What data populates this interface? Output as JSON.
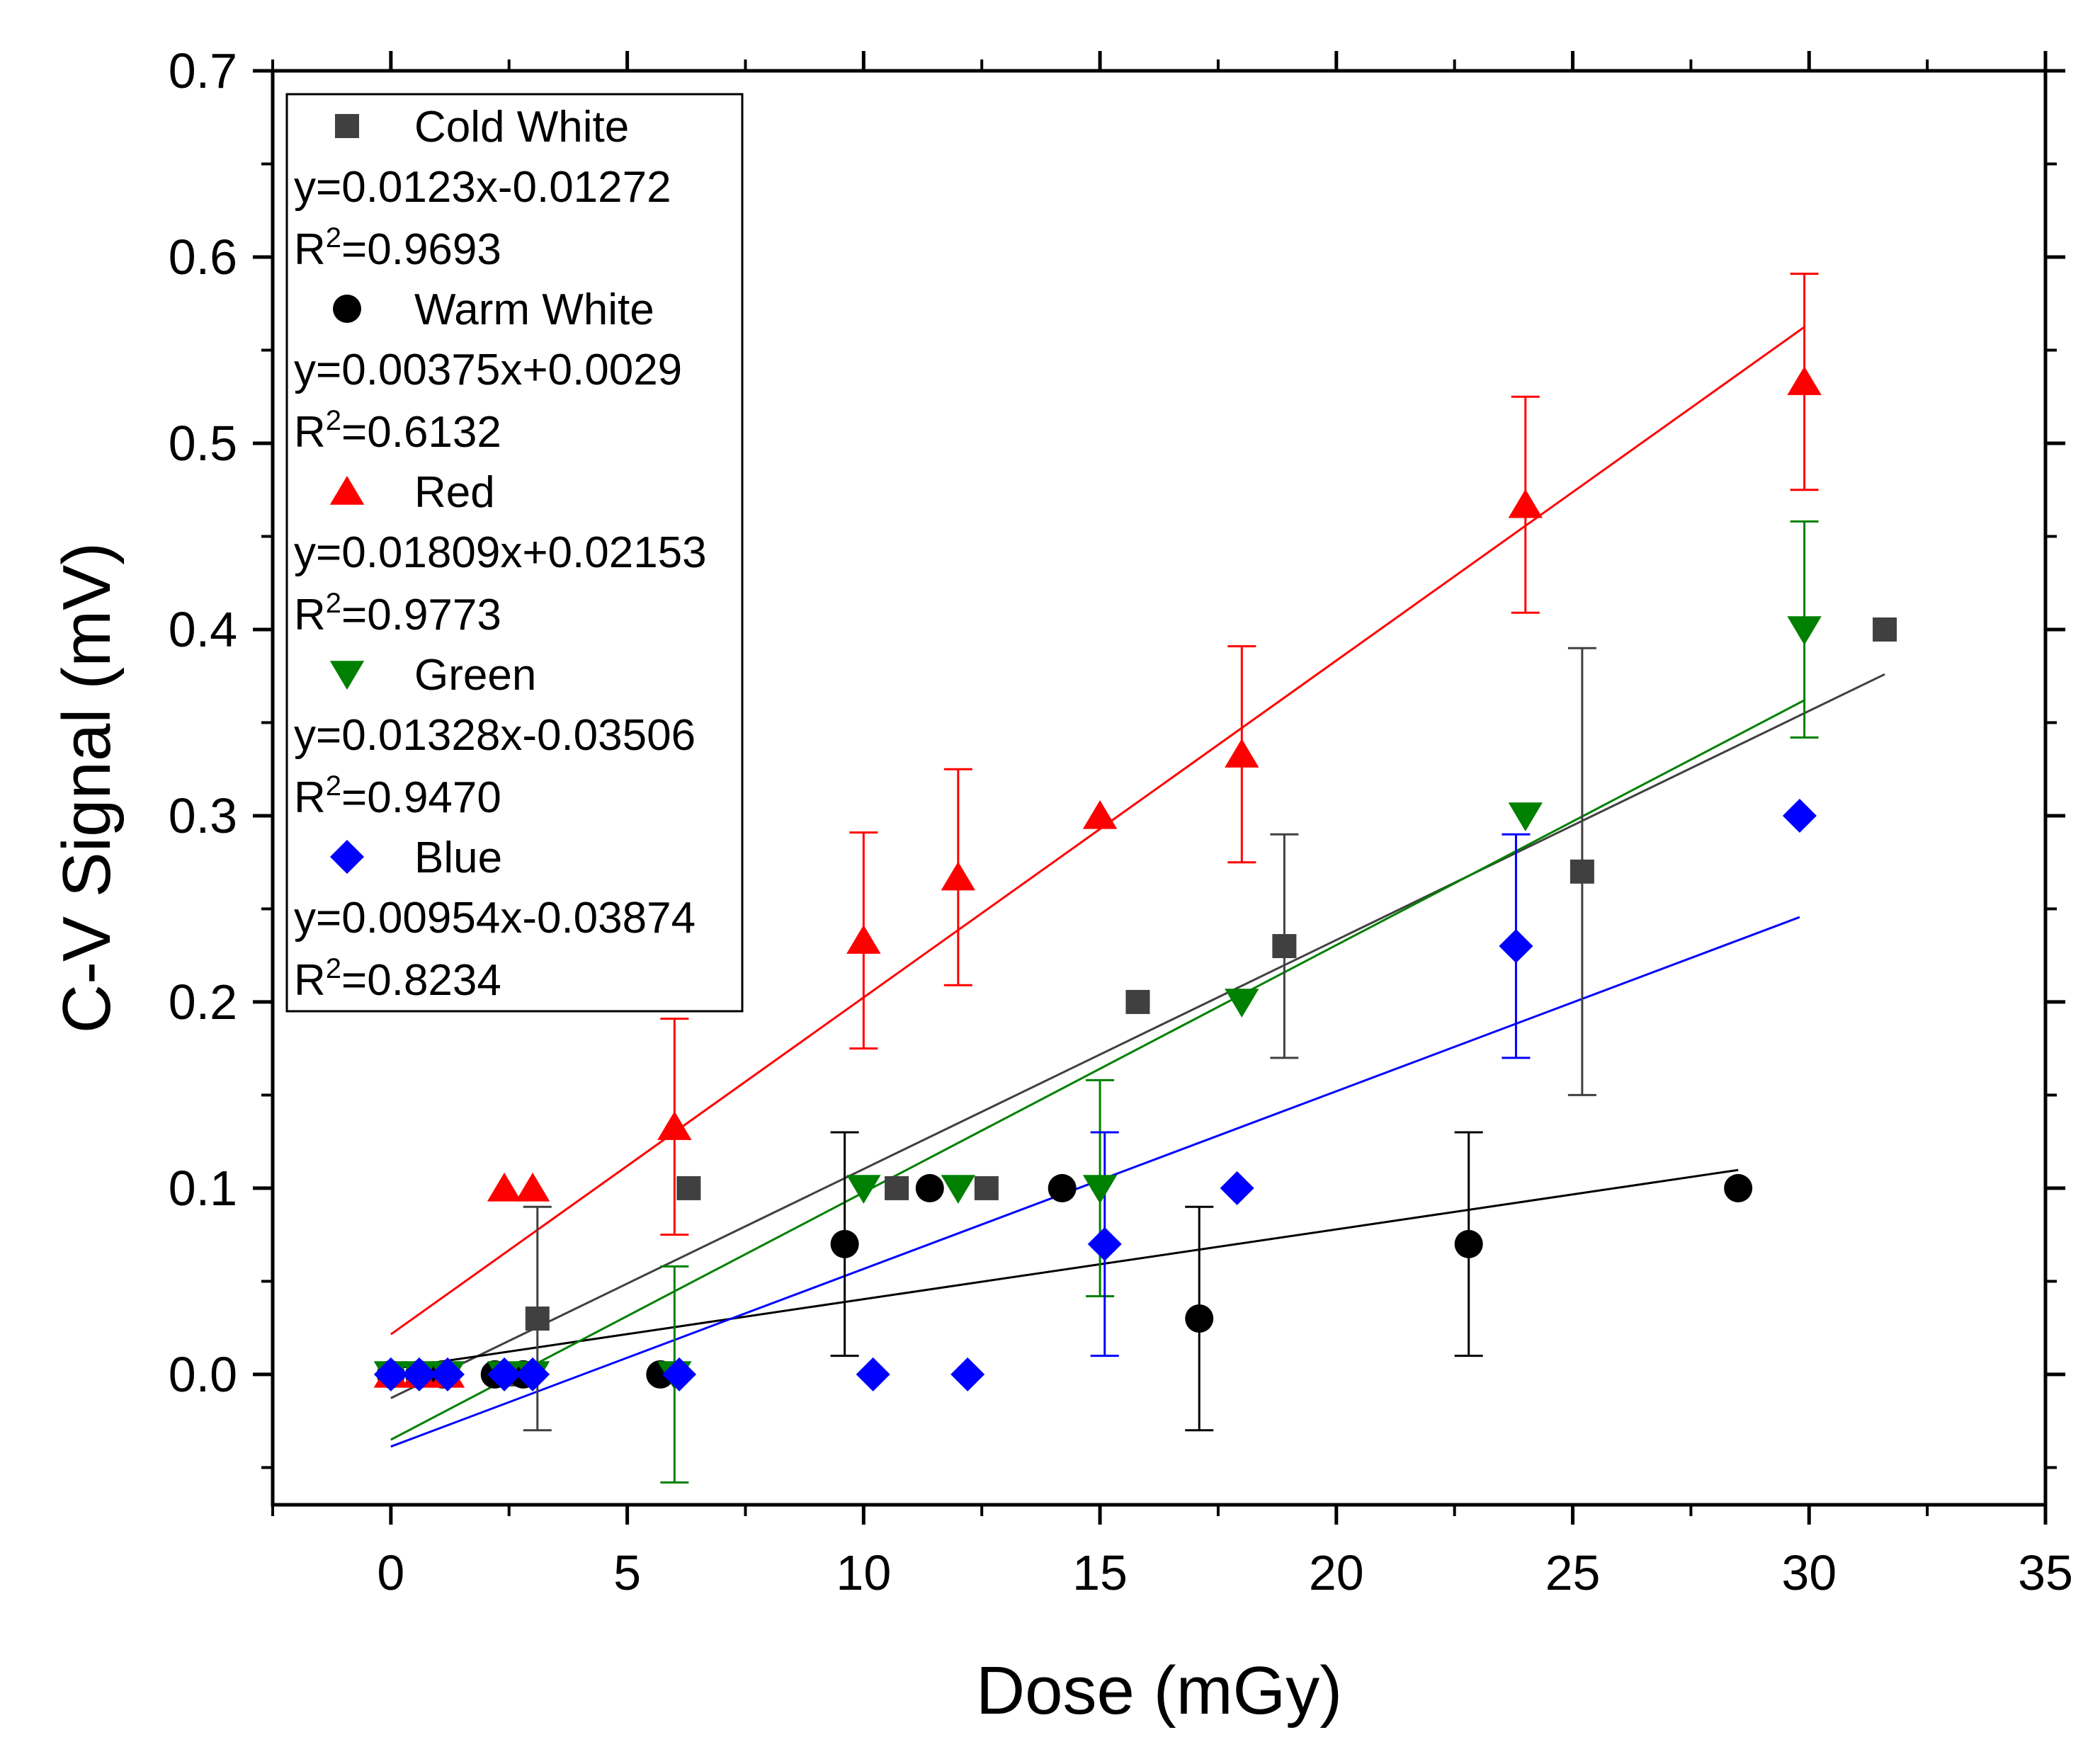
{
  "chart_data": {
    "type": "scatter",
    "title": "",
    "xlabel": "Dose (mGy)",
    "ylabel": "C-V Signal (mV)",
    "xlim": [
      -2.5,
      35
    ],
    "ylim": [
      -0.07,
      0.7
    ],
    "xticks": [
      0,
      5,
      10,
      15,
      20,
      25,
      30,
      35
    ],
    "yticks": [
      0.0,
      0.1,
      0.2,
      0.3,
      0.4,
      0.5,
      0.6,
      0.7
    ],
    "xtick_labels": [
      "0",
      "5",
      "10",
      "15",
      "20",
      "25",
      "30",
      "35"
    ],
    "ytick_labels": [
      "0.0",
      "0.1",
      "0.2",
      "0.3",
      "0.4",
      "0.5",
      "0.6",
      "0.7"
    ],
    "grid": false,
    "legend_position": "top-left",
    "series": [
      {
        "name": "Cold White",
        "marker": "square",
        "color": "#404040",
        "equation": "y=0.0123x-0.01272",
        "r2_label": "R",
        "r2_value": "=0.9693",
        "fit": {
          "slope": 0.0123,
          "intercept": -0.01272,
          "x_range": [
            0,
            31.6
          ]
        },
        "points": [
          {
            "x": 0,
            "y": 0
          },
          {
            "x": 0.6,
            "y": 0
          },
          {
            "x": 1.2,
            "y": 0
          },
          {
            "x": 2.4,
            "y": 0
          },
          {
            "x": 3.1,
            "y": 0.03,
            "err_low": 0.06,
            "err_high": 0.06
          },
          {
            "x": 6.3,
            "y": 0.1
          },
          {
            "x": 10.7,
            "y": 0.1
          },
          {
            "x": 12.6,
            "y": 0.1
          },
          {
            "x": 15.8,
            "y": 0.2
          },
          {
            "x": 18.9,
            "y": 0.23,
            "err_low": 0.06,
            "err_high": 0.06
          },
          {
            "x": 25.2,
            "y": 0.27,
            "err_low": 0.12,
            "err_high": 0.12
          },
          {
            "x": 31.6,
            "y": 0.4
          }
        ]
      },
      {
        "name": "Warm White",
        "marker": "circle",
        "color": "#000000",
        "equation": "y=0.00375x+0.0029",
        "r2_label": "R",
        "r2_value": "=0.6132",
        "fit": {
          "slope": 0.00375,
          "intercept": 0.0029,
          "x_range": [
            0,
            28.5
          ]
        },
        "points": [
          {
            "x": 0,
            "y": 0
          },
          {
            "x": 0.6,
            "y": 0
          },
          {
            "x": 1.1,
            "y": 0
          },
          {
            "x": 2.2,
            "y": 0
          },
          {
            "x": 2.8,
            "y": 0
          },
          {
            "x": 5.7,
            "y": 0
          },
          {
            "x": 9.6,
            "y": 0.07,
            "err_low": 0.06,
            "err_high": 0.06
          },
          {
            "x": 11.4,
            "y": 0.1
          },
          {
            "x": 14.2,
            "y": 0.1
          },
          {
            "x": 17.1,
            "y": 0.03,
            "err_low": 0.06,
            "err_high": 0.06
          },
          {
            "x": 22.8,
            "y": 0.07,
            "err_low": 0.06,
            "err_high": 0.06
          },
          {
            "x": 28.5,
            "y": 0.1
          }
        ]
      },
      {
        "name": "Red",
        "marker": "triangle-up",
        "color": "#ff0000",
        "equation": "y=0.01809x+0.02153",
        "r2_label": "R",
        "r2_value": "=0.9773",
        "fit": {
          "slope": 0.01809,
          "intercept": 0.02153,
          "x_range": [
            0,
            29.9
          ]
        },
        "points": [
          {
            "x": 0,
            "y": 0
          },
          {
            "x": 0.6,
            "y": 0
          },
          {
            "x": 1.2,
            "y": 0
          },
          {
            "x": 2.4,
            "y": 0.1
          },
          {
            "x": 3.0,
            "y": 0.1
          },
          {
            "x": 6.0,
            "y": 0.133,
            "err_low": 0.058,
            "err_high": 0.058
          },
          {
            "x": 10.0,
            "y": 0.233,
            "err_low": 0.058,
            "err_high": 0.058
          },
          {
            "x": 12.0,
            "y": 0.267,
            "err_low": 0.058,
            "err_high": 0.058
          },
          {
            "x": 15.0,
            "y": 0.3
          },
          {
            "x": 18.0,
            "y": 0.333,
            "err_low": 0.058,
            "err_high": 0.058
          },
          {
            "x": 24.0,
            "y": 0.467,
            "err_low": 0.058,
            "err_high": 0.058
          },
          {
            "x": 29.9,
            "y": 0.533,
            "err_low": 0.058,
            "err_high": 0.058
          }
        ]
      },
      {
        "name": "Green",
        "marker": "triangle-down",
        "color": "#008000",
        "equation": "y=0.01328x-0.03506",
        "r2_label": "R",
        "r2_value": "=0.9470",
        "fit": {
          "slope": 0.01328,
          "intercept": -0.03506,
          "x_range": [
            0,
            29.9
          ]
        },
        "points": [
          {
            "x": 0,
            "y": 0
          },
          {
            "x": 0.6,
            "y": 0
          },
          {
            "x": 1.2,
            "y": 0
          },
          {
            "x": 2.4,
            "y": 0
          },
          {
            "x": 3.0,
            "y": 0
          },
          {
            "x": 6.0,
            "y": 0,
            "err_low": 0.058,
            "err_high": 0.058
          },
          {
            "x": 10.0,
            "y": 0.1
          },
          {
            "x": 12.0,
            "y": 0.1
          },
          {
            "x": 15.0,
            "y": 0.1,
            "err_low": 0.058,
            "err_high": 0.058
          },
          {
            "x": 18.0,
            "y": 0.2
          },
          {
            "x": 24.0,
            "y": 0.3
          },
          {
            "x": 29.9,
            "y": 0.4,
            "err_low": 0.058,
            "err_high": 0.058
          }
        ]
      },
      {
        "name": "Blue",
        "marker": "diamond",
        "color": "#0000ff",
        "equation": "y=0.00954x-0.03874",
        "r2_label": "R",
        "r2_value": "=0.8234",
        "fit": {
          "slope": 0.00954,
          "intercept": -0.03874,
          "x_range": [
            0,
            29.8
          ]
        },
        "points": [
          {
            "x": 0,
            "y": 0
          },
          {
            "x": 0.6,
            "y": 0
          },
          {
            "x": 1.2,
            "y": 0
          },
          {
            "x": 2.4,
            "y": 0
          },
          {
            "x": 3.0,
            "y": 0
          },
          {
            "x": 6.1,
            "y": 0
          },
          {
            "x": 10.2,
            "y": 0
          },
          {
            "x": 12.2,
            "y": 0
          },
          {
            "x": 15.1,
            "y": 0.07,
            "err_low": 0.06,
            "err_high": 0.06
          },
          {
            "x": 17.9,
            "y": 0.1
          },
          {
            "x": 23.8,
            "y": 0.23,
            "err_low": 0.06,
            "err_high": 0.06
          },
          {
            "x": 29.8,
            "y": 0.3
          }
        ]
      }
    ]
  }
}
